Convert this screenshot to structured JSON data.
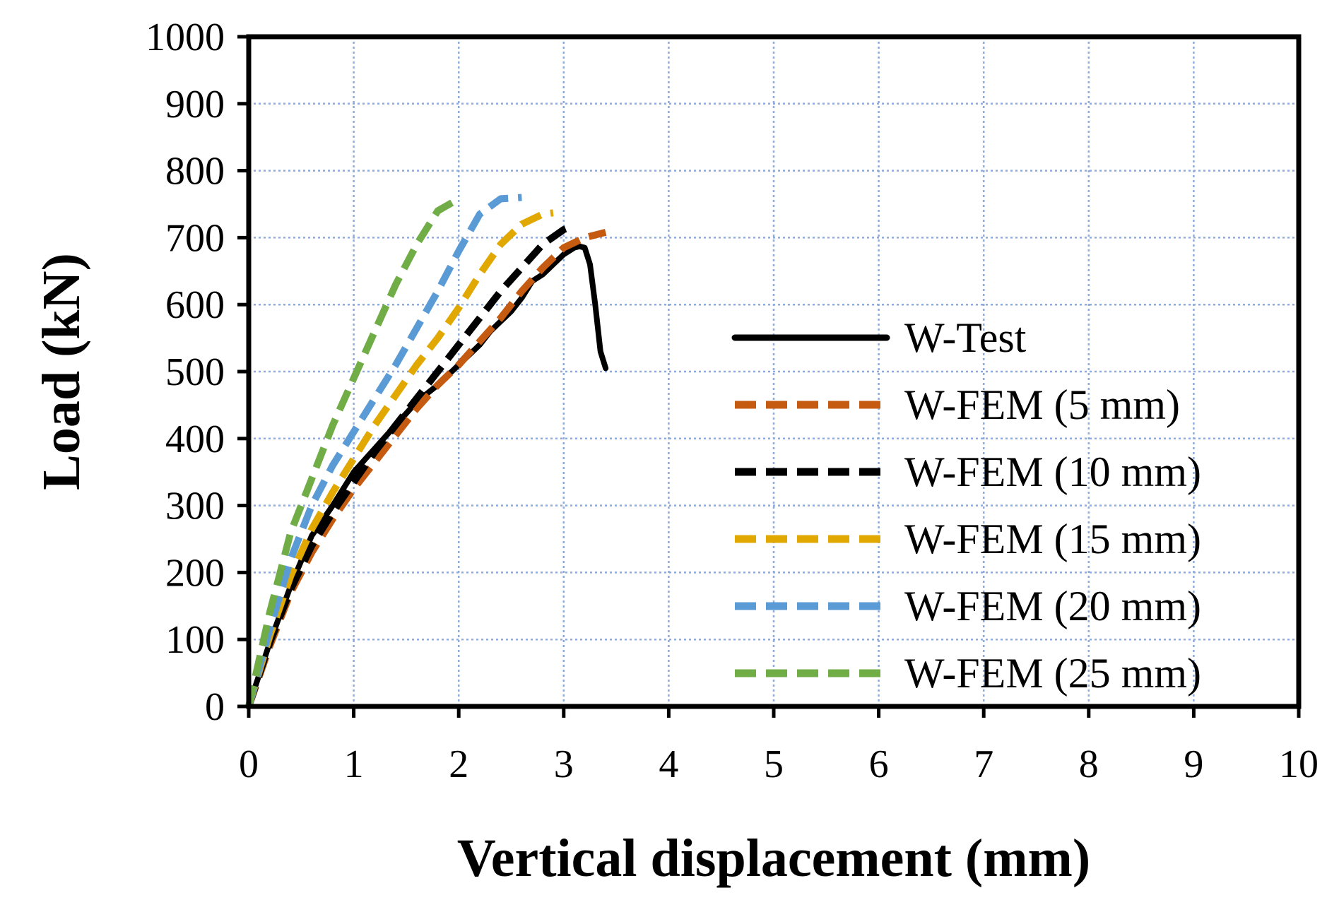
{
  "chart_data": {
    "type": "line",
    "title": "",
    "xlabel": "Vertical displacement (mm)",
    "ylabel": "Load (kN)",
    "xlim": [
      0,
      10
    ],
    "ylim": [
      0,
      1000
    ],
    "xticks": [
      0,
      1,
      2,
      3,
      4,
      5,
      6,
      7,
      8,
      9,
      10
    ],
    "yticks": [
      0,
      100,
      200,
      300,
      400,
      500,
      600,
      700,
      800,
      900,
      1000
    ],
    "grid": true,
    "legend_position": "right",
    "series": [
      {
        "name": "W-Test",
        "color": "#000000",
        "style": "solid",
        "x": [
          0,
          0.2,
          0.4,
          0.6,
          0.8,
          1.0,
          1.2,
          1.4,
          1.6,
          1.8,
          2.0,
          2.2,
          2.3,
          2.4,
          2.5,
          2.6,
          2.7,
          2.8,
          2.9,
          3.0,
          3.1,
          3.15,
          3.2,
          3.25,
          3.3,
          3.35,
          3.4
        ],
        "y": [
          0,
          95,
          180,
          255,
          300,
          350,
          385,
          420,
          455,
          480,
          510,
          540,
          560,
          575,
          590,
          610,
          635,
          645,
          660,
          675,
          685,
          687,
          685,
          660,
          600,
          530,
          505
        ]
      },
      {
        "name": "W-FEM (5 mm)",
        "color": "#c55a11",
        "style": "dashed",
        "x": [
          0,
          0.2,
          0.4,
          0.6,
          0.8,
          1.0,
          1.2,
          1.4,
          1.6,
          1.8,
          2.0,
          2.2,
          2.4,
          2.6,
          2.8,
          3.0,
          3.2,
          3.4
        ],
        "y": [
          0,
          90,
          170,
          230,
          280,
          325,
          365,
          405,
          445,
          480,
          510,
          545,
          580,
          620,
          655,
          685,
          700,
          708
        ]
      },
      {
        "name": "W-FEM (10 mm)",
        "color": "#000000",
        "style": "dashed",
        "x": [
          0,
          0.2,
          0.4,
          0.6,
          0.8,
          1.0,
          1.2,
          1.4,
          1.6,
          1.8,
          2.0,
          2.2,
          2.4,
          2.6,
          2.8,
          3.0,
          3.1
        ],
        "y": [
          0,
          95,
          175,
          240,
          290,
          335,
          380,
          420,
          460,
          500,
          540,
          580,
          620,
          655,
          690,
          712,
          718
        ]
      },
      {
        "name": "W-FEM (15 mm)",
        "color": "#e0a800",
        "style": "dashed",
        "x": [
          0,
          0.2,
          0.4,
          0.6,
          0.8,
          1.0,
          1.2,
          1.4,
          1.6,
          1.8,
          2.0,
          2.2,
          2.4,
          2.6,
          2.8,
          2.9
        ],
        "y": [
          0,
          105,
          195,
          265,
          320,
          370,
          420,
          465,
          510,
          550,
          595,
          645,
          690,
          720,
          735,
          737
        ]
      },
      {
        "name": "W-FEM (20 mm)",
        "color": "#5b9bd5",
        "style": "dashed",
        "x": [
          0,
          0.2,
          0.4,
          0.6,
          0.8,
          1.0,
          1.2,
          1.4,
          1.6,
          1.8,
          2.0,
          2.2,
          2.4,
          2.6
        ],
        "y": [
          0,
          115,
          220,
          300,
          360,
          410,
          460,
          510,
          565,
          620,
          680,
          735,
          758,
          760
        ]
      },
      {
        "name": "W-FEM (25 mm)",
        "color": "#70ad47",
        "style": "dashed",
        "x": [
          0,
          0.2,
          0.4,
          0.6,
          0.8,
          1.0,
          1.2,
          1.4,
          1.6,
          1.8,
          2.0
        ],
        "y": [
          0,
          140,
          260,
          340,
          420,
          490,
          560,
          630,
          690,
          740,
          758
        ]
      }
    ]
  }
}
